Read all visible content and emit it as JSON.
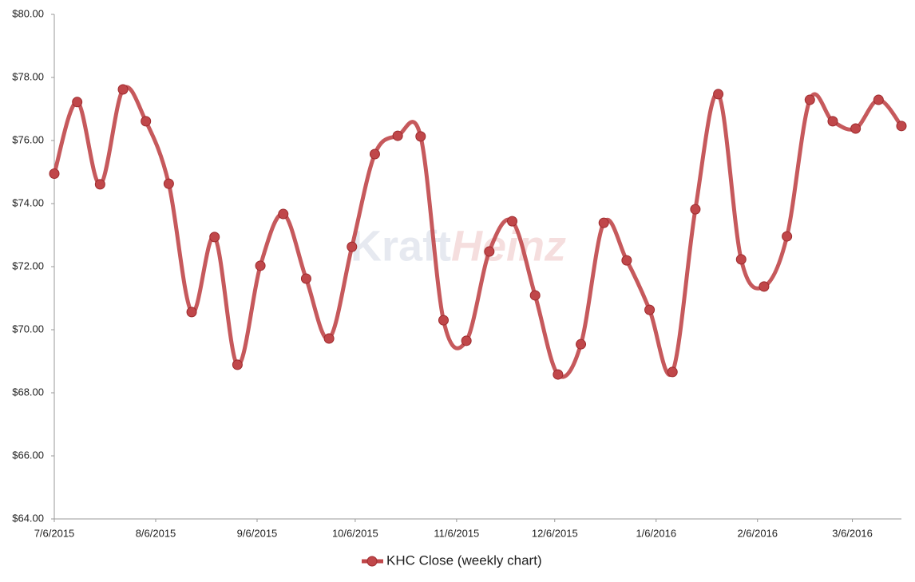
{
  "chart_data": {
    "type": "line",
    "watermark": [
      "Kraft",
      "Heinz"
    ],
    "x": [
      "2015-07-06",
      "2015-07-13",
      "2015-07-20",
      "2015-07-27",
      "2015-08-03",
      "2015-08-10",
      "2015-08-17",
      "2015-08-24",
      "2015-08-31",
      "2015-09-07",
      "2015-09-14",
      "2015-09-21",
      "2015-09-28",
      "2015-10-05",
      "2015-10-12",
      "2015-10-19",
      "2015-10-26",
      "2015-11-02",
      "2015-11-09",
      "2015-11-16",
      "2015-11-23",
      "2015-11-30",
      "2015-12-07",
      "2015-12-14",
      "2015-12-21",
      "2015-12-28",
      "2016-01-04",
      "2016-01-11",
      "2016-01-18",
      "2016-01-25",
      "2016-02-01",
      "2016-02-08",
      "2016-02-15",
      "2016-02-22",
      "2016-02-29",
      "2016-03-07",
      "2016-03-14",
      "2016-03-21"
    ],
    "series": [
      {
        "name": "KHC Close (weekly chart)",
        "color": "#c0474a",
        "values": [
          74.95,
          77.22,
          74.61,
          77.62,
          76.61,
          74.63,
          70.56,
          72.94,
          68.89,
          72.03,
          73.67,
          71.62,
          69.72,
          72.63,
          75.57,
          76.15,
          76.13,
          70.3,
          69.65,
          72.48,
          73.44,
          71.09,
          68.58,
          69.54,
          73.39,
          72.2,
          70.63,
          68.66,
          73.82,
          77.47,
          72.23,
          71.37,
          72.96,
          77.29,
          76.61,
          76.38,
          77.29,
          76.46
        ]
      }
    ],
    "xlim": [
      "2015-07-06",
      "2016-03-21"
    ],
    "xticks": [
      {
        "value": "2015-07-06",
        "label": "7/6/2015"
      },
      {
        "value": "2015-08-06",
        "label": "8/6/2015"
      },
      {
        "value": "2015-09-06",
        "label": "9/6/2015"
      },
      {
        "value": "2015-10-06",
        "label": "10/6/2015"
      },
      {
        "value": "2015-11-06",
        "label": "11/6/2015"
      },
      {
        "value": "2015-12-06",
        "label": "12/6/2015"
      },
      {
        "value": "2016-01-06",
        "label": "1/6/2016"
      },
      {
        "value": "2016-02-06",
        "label": "2/6/2016"
      },
      {
        "value": "2016-03-06",
        "label": "3/6/2016"
      }
    ],
    "ylim": [
      64,
      80
    ],
    "yticks": [
      {
        "value": 64,
        "label": "$64.00"
      },
      {
        "value": 66,
        "label": "$66.00"
      },
      {
        "value": 68,
        "label": "$68.00"
      },
      {
        "value": 70,
        "label": "$70.00"
      },
      {
        "value": 72,
        "label": "$72.00"
      },
      {
        "value": 74,
        "label": "$74.00"
      },
      {
        "value": 76,
        "label": "$76.00"
      },
      {
        "value": 78,
        "label": "$78.00"
      },
      {
        "value": 80,
        "label": "$80.00"
      }
    ],
    "grid": false,
    "legend": "bottom"
  }
}
